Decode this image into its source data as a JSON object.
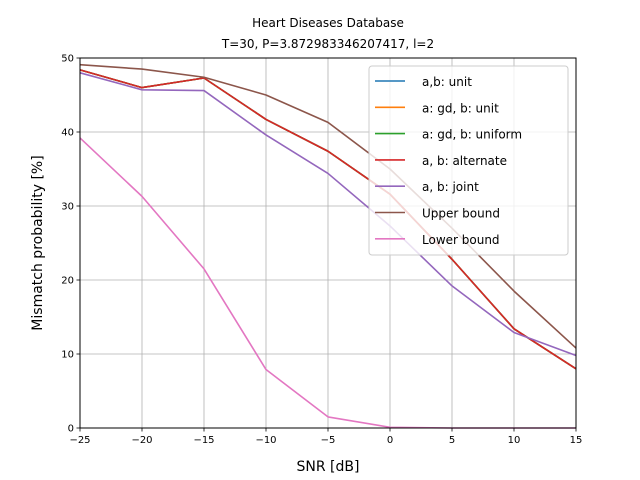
{
  "chart_data": {
    "type": "line",
    "title": "Heart Diseases Database",
    "subtitle": "T=30, P=3.872983346207417, l=2",
    "xlabel": "SNR [dB]",
    "ylabel": "Mismatch probability [%]",
    "xlim": [
      -25,
      15
    ],
    "ylim": [
      0,
      50
    ],
    "xticks": [
      -25,
      -20,
      -15,
      -10,
      -5,
      0,
      5,
      10,
      15
    ],
    "yticks": [
      0,
      10,
      20,
      30,
      40,
      50
    ],
    "x": [
      -25,
      -20,
      -15,
      -10,
      -5,
      0,
      5,
      10,
      15
    ],
    "grid": true,
    "legend_position": "upper-right",
    "series": [
      {
        "name": "a,b: unit",
        "color": "#1f77b4",
        "values": [
          48.4,
          46.0,
          47.3,
          41.7,
          37.4,
          31.6,
          22.8,
          13.4,
          8.0
        ]
      },
      {
        "name": "a: gd, b: unit",
        "color": "#ff7f0e",
        "values": [
          48.4,
          46.0,
          47.3,
          41.7,
          37.4,
          31.6,
          22.8,
          13.4,
          8.0
        ]
      },
      {
        "name": "a: gd, b: uniform",
        "color": "#2ca02c",
        "values": [
          48.4,
          46.0,
          47.3,
          41.7,
          37.4,
          31.6,
          22.8,
          13.4,
          8.0
        ]
      },
      {
        "name": "a, b: alternate",
        "color": "#d62728",
        "values": [
          48.4,
          46.0,
          47.3,
          41.7,
          37.4,
          31.6,
          22.8,
          13.4,
          8.0
        ]
      },
      {
        "name": "a, b: joint",
        "color": "#9467bd",
        "values": [
          48.0,
          45.7,
          45.6,
          39.6,
          34.4,
          27.3,
          19.2,
          12.9,
          9.8
        ]
      },
      {
        "name": "Upper bound",
        "color": "#8c564b",
        "values": [
          49.1,
          48.5,
          47.4,
          45.0,
          41.3,
          35.0,
          27.0,
          18.5,
          10.8
        ]
      },
      {
        "name": "Lower bound",
        "color": "#e377c2",
        "values": [
          39.2,
          31.3,
          21.5,
          7.9,
          1.5,
          0.1,
          0.0,
          0.0,
          0.0
        ]
      }
    ]
  }
}
